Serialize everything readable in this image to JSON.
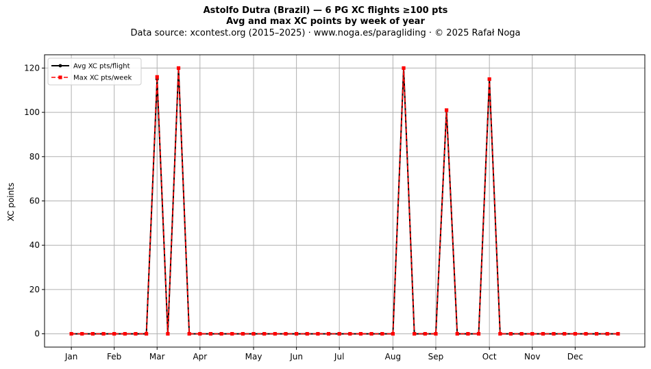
{
  "title": "Astolfo Dutra (Brazil)  —  6 PG XC flights ≥100 pts",
  "subtitle": "Avg and max XC points by week of year",
  "source": "Data source: xcontest.org (2015–2025)  ·  www.noga.es/paragliding  ·  © 2025 Rafał Noga",
  "chart_data": {
    "type": "line",
    "title": "Astolfo Dutra (Brazil)  —  6 PG XC flights ≥100 pts",
    "subtitle": "Avg and max XC points by week of year",
    "xlabel": "",
    "ylabel": "XC points",
    "xlim": [
      -1.5,
      54.5
    ],
    "ylim": [
      -6,
      126
    ],
    "grid": true,
    "legend_position": "upper left",
    "month_ticks": [
      {
        "label": "Jan",
        "week": 1
      },
      {
        "label": "Feb",
        "week": 5
      },
      {
        "label": "Mar",
        "week": 9
      },
      {
        "label": "Apr",
        "week": 13
      },
      {
        "label": "May",
        "week": 18
      },
      {
        "label": "Jun",
        "week": 22
      },
      {
        "label": "Jul",
        "week": 26
      },
      {
        "label": "Aug",
        "week": 31
      },
      {
        "label": "Sep",
        "week": 35
      },
      {
        "label": "Oct",
        "week": 40
      },
      {
        "label": "Nov",
        "week": 44
      },
      {
        "label": "Dec",
        "week": 48
      }
    ],
    "y_ticks": [
      0,
      20,
      40,
      60,
      80,
      100,
      120
    ],
    "x": [
      1,
      2,
      3,
      4,
      5,
      6,
      7,
      8,
      9,
      10,
      11,
      12,
      13,
      14,
      15,
      16,
      17,
      18,
      19,
      20,
      21,
      22,
      23,
      24,
      25,
      26,
      27,
      28,
      29,
      30,
      31,
      32,
      33,
      34,
      35,
      36,
      37,
      38,
      39,
      40,
      41,
      42,
      43,
      44,
      45,
      46,
      47,
      48,
      49,
      50,
      51,
      52
    ],
    "series": [
      {
        "name": "Avg XC pts/flight",
        "color": "#000000",
        "style": "solid",
        "marker": "circle",
        "values": [
          0,
          0,
          0,
          0,
          0,
          0,
          0,
          0,
          115,
          0,
          120,
          0,
          0,
          0,
          0,
          0,
          0,
          0,
          0,
          0,
          0,
          0,
          0,
          0,
          0,
          0,
          0,
          0,
          0,
          0,
          0,
          120,
          0,
          0,
          0,
          101,
          0,
          0,
          0,
          115,
          0,
          0,
          0,
          0,
          0,
          0,
          0,
          0,
          0,
          0,
          0,
          0
        ]
      },
      {
        "name": "Max XC pts/week",
        "color": "#ff0000",
        "style": "dashed",
        "marker": "square",
        "values": [
          0,
          0,
          0,
          0,
          0,
          0,
          0,
          0,
          116,
          0,
          120,
          0,
          0,
          0,
          0,
          0,
          0,
          0,
          0,
          0,
          0,
          0,
          0,
          0,
          0,
          0,
          0,
          0,
          0,
          0,
          0,
          120,
          0,
          0,
          0,
          101,
          0,
          0,
          0,
          115,
          0,
          0,
          0,
          0,
          0,
          0,
          0,
          0,
          0,
          0,
          0,
          0
        ]
      }
    ]
  }
}
